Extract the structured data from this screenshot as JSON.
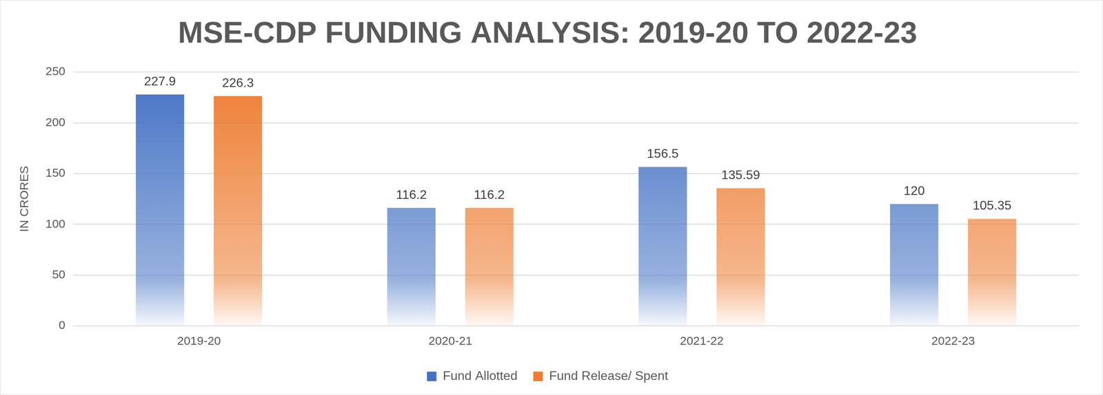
{
  "chart_data": {
    "type": "bar",
    "title": "MSE-CDP FUNDING ANALYSIS: 2019-20 TO 2022-23",
    "y_label": "IN CRORES",
    "categories": [
      "2019-20",
      "2020-21",
      "2021-22",
      "2022-23"
    ],
    "series": [
      {
        "name": "Fund Allotted",
        "color": "#4472c4",
        "values": [
          227.9,
          116.2,
          156.5,
          120
        ]
      },
      {
        "name": "Fund Release/ Spent",
        "color": "#ed7d31",
        "values": [
          226.3,
          116.2,
          135.59,
          105.35
        ]
      }
    ],
    "ylim": [
      0,
      250
    ],
    "yticks": [
      0,
      50,
      100,
      150,
      200,
      250
    ],
    "grid": true,
    "legend": "bottom",
    "data_labels": true
  }
}
